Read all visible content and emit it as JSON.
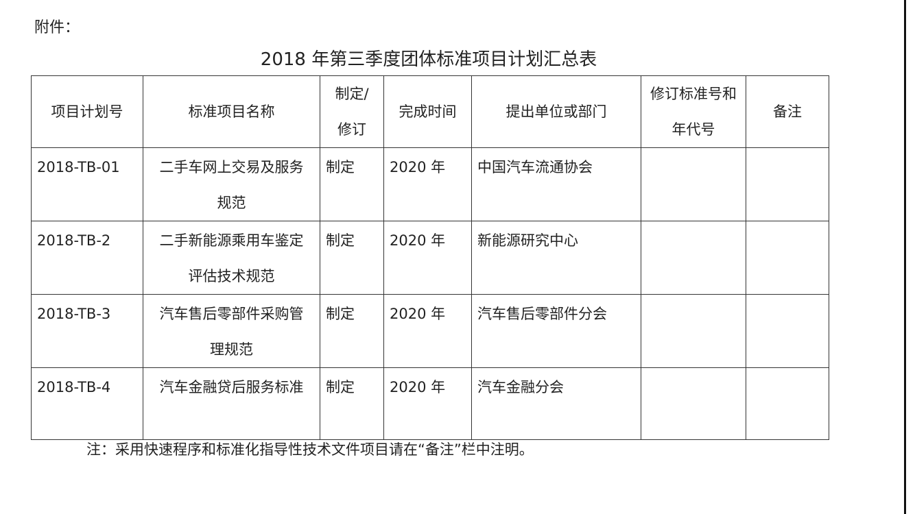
{
  "attachment_label": "附件：",
  "title": "2018 年第三季度团体标准项目计划汇总表",
  "table": {
    "headers": [
      "项目计划号",
      "标准项目名称",
      "制定/修订",
      "完成时间",
      "提出单位或部门",
      "修订标准号和年代号",
      "备注"
    ],
    "rows": [
      [
        "2018-TB-01",
        "二手车网上交易及服务规范",
        "制定",
        "2020 年",
        "中国汽车流通协会",
        "",
        ""
      ],
      [
        "2018-TB-2",
        "二手新能源乘用车鉴定评估技术规范",
        "制定",
        "2020 年",
        "新能源研究中心",
        "",
        ""
      ],
      [
        "2018-TB-3",
        "汽车售后零部件采购管理规范",
        "制定",
        "2020 年",
        "汽车售后零部件分会",
        "",
        ""
      ],
      [
        "2018-TB-4",
        "汽车金融贷后服务标准",
        "制定",
        "2020 年",
        "汽车金融分会",
        "",
        ""
      ]
    ]
  },
  "note": "注：采用快速程序和标准化指导性技术文件项目请在“备注”栏中注明。"
}
